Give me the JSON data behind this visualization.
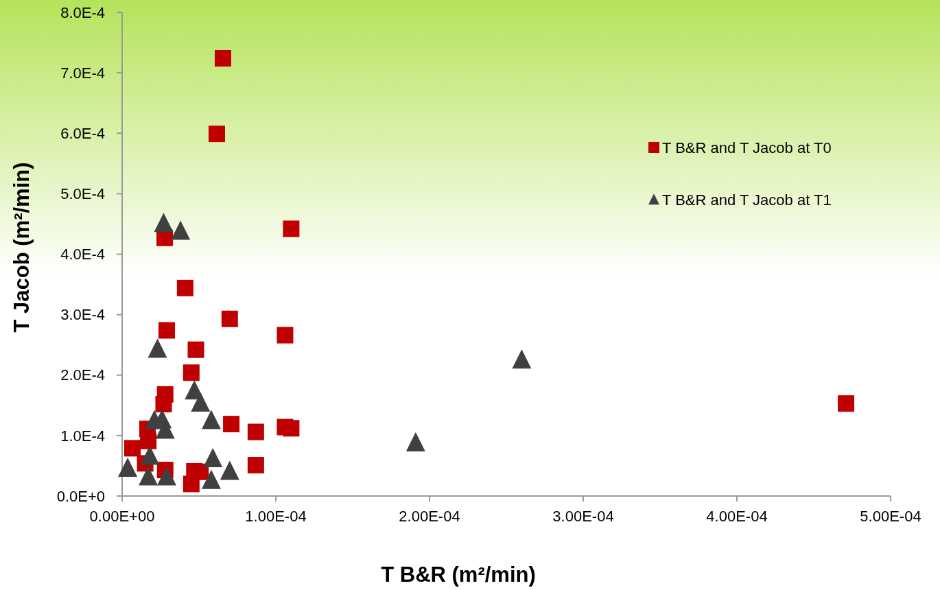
{
  "chart_data": {
    "type": "scatter",
    "xlabel": "T B&R (m²/min)",
    "ylabel": "T Jacob (m²/min)",
    "xlim": [
      0,
      0.0005
    ],
    "ylim": [
      0,
      0.0008
    ],
    "xticks": [
      {
        "value": 0,
        "label": "0.00E+00"
      },
      {
        "value": 0.0001,
        "label": "1.00E-04"
      },
      {
        "value": 0.0002,
        "label": "2.00E-04"
      },
      {
        "value": 0.0003,
        "label": "3.00E-04"
      },
      {
        "value": 0.0004,
        "label": "4.00E-04"
      },
      {
        "value": 0.0005,
        "label": "5.00E-04"
      }
    ],
    "yticks": [
      {
        "value": 0,
        "label": "0.0E+0"
      },
      {
        "value": 0.0001,
        "label": "1.0E-4"
      },
      {
        "value": 0.0002,
        "label": "2.0E-4"
      },
      {
        "value": 0.0003,
        "label": "3.0E-4"
      },
      {
        "value": 0.0004,
        "label": "4.0E-4"
      },
      {
        "value": 0.0005,
        "label": "5.0E-4"
      },
      {
        "value": 0.0006,
        "label": "6.0E-4"
      },
      {
        "value": 0.0007,
        "label": "7.0E-4"
      },
      {
        "value": 0.0008,
        "label": "8.0E-4"
      }
    ],
    "grid": false,
    "legend": "top right",
    "series": [
      {
        "name": "T B&R and T Jacob at T0",
        "color": "#c00000",
        "marker": "square",
        "x": [
          6.56e-05,
          6.16e-05,
          2.77e-05,
          0.00011,
          4.1e-05,
          7e-05,
          2.9e-05,
          0.000106,
          4.8e-05,
          4.5e-05,
          2.8e-05,
          2.7e-05,
          7.1e-05,
          8.7e-05,
          0.000106,
          0.00011,
          1.65e-05,
          1.7e-05,
          6.7e-06,
          1.5e-05,
          2.8e-05,
          4.7e-05,
          5.1e-05,
          4.5e-05,
          8.7e-05,
          0.000471
        ],
        "values": [
          0.000724,
          0.000599,
          0.000427,
          0.000442,
          0.000344,
          0.000293,
          0.000274,
          0.000266,
          0.000242,
          0.000204,
          0.000168,
          0.000152,
          0.000119,
          0.000106,
          0.000114,
          0.000112,
          0.000111,
          9.1e-05,
          7.9e-05,
          5.4e-05,
          4.3e-05,
          4.1e-05,
          4e-05,
          2e-05,
          5.1e-05,
          0.000153
        ]
      },
      {
        "name": "T B&R and T Jacob at T1",
        "color": "#404040",
        "marker": "triangle",
        "x": [
          2.7e-05,
          3.8e-05,
          2.3e-05,
          4.7e-05,
          5.1e-05,
          5.8e-05,
          2.1e-05,
          2.6e-05,
          2.8e-05,
          1.8e-05,
          3.6e-06,
          1.7e-05,
          2.9e-05,
          5.9e-05,
          7e-05,
          5.8e-05,
          0.000191,
          0.00026
        ],
        "values": [
          0.000451,
          0.000438,
          0.000243,
          0.000174,
          0.000154,
          0.000125,
          0.000125,
          0.000126,
          0.000109,
          6.6e-05,
          4.6e-05,
          3.2e-05,
          3.2e-05,
          6.2e-05,
          4.1e-05,
          2.6e-05,
          8.8e-05,
          0.000225
        ]
      }
    ]
  }
}
